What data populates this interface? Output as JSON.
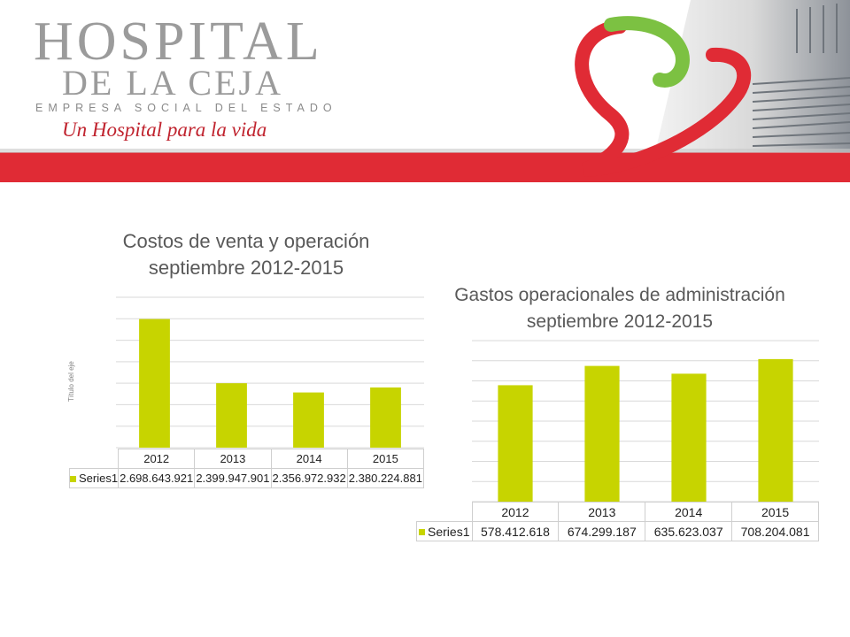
{
  "header": {
    "logo_line1": "HOSPITAL",
    "logo_line2": "DE LA CEJA",
    "logo_line3": "EMPRESA SOCIAL DEL ESTADO",
    "tagline": "Un Hospital para la vida",
    "colors": {
      "red": "#e02b35",
      "green": "#7cc142",
      "gray": "#9b9b9b"
    }
  },
  "chart_data": [
    {
      "type": "bar",
      "title_line1": "Costos de venta y operación",
      "title_line2": "septiembre 2012-2015",
      "ylabel": "Título del eje",
      "categories": [
        "2012",
        "2013",
        "2014",
        "2015"
      ],
      "series": [
        {
          "name": "Series1",
          "values": [
            2698643921,
            2399947901,
            2356972932,
            2380224881
          ],
          "labels": [
            "2.698.643.921",
            "2.399.947.901",
            "2.356.972.932",
            "2.380.224.881"
          ]
        }
      ],
      "ylim": [
        2100000000,
        2800000000
      ],
      "gridlines": 7,
      "grid": true,
      "color": "#c7d400"
    },
    {
      "type": "bar",
      "title_line1": "Gastos operacionales de administración",
      "title_line2": "septiembre 2012-2015",
      "categories": [
        "2012",
        "2013",
        "2014",
        "2015"
      ],
      "series": [
        {
          "name": "Series1",
          "values": [
            578412618,
            674299187,
            635623037,
            708204081
          ],
          "labels": [
            "578.412.618",
            "674.299.187",
            "635.623.037",
            "708.204.081"
          ]
        }
      ],
      "ylim": [
        0,
        800000000
      ],
      "gridlines": 8,
      "grid": true,
      "color": "#c7d400"
    }
  ]
}
